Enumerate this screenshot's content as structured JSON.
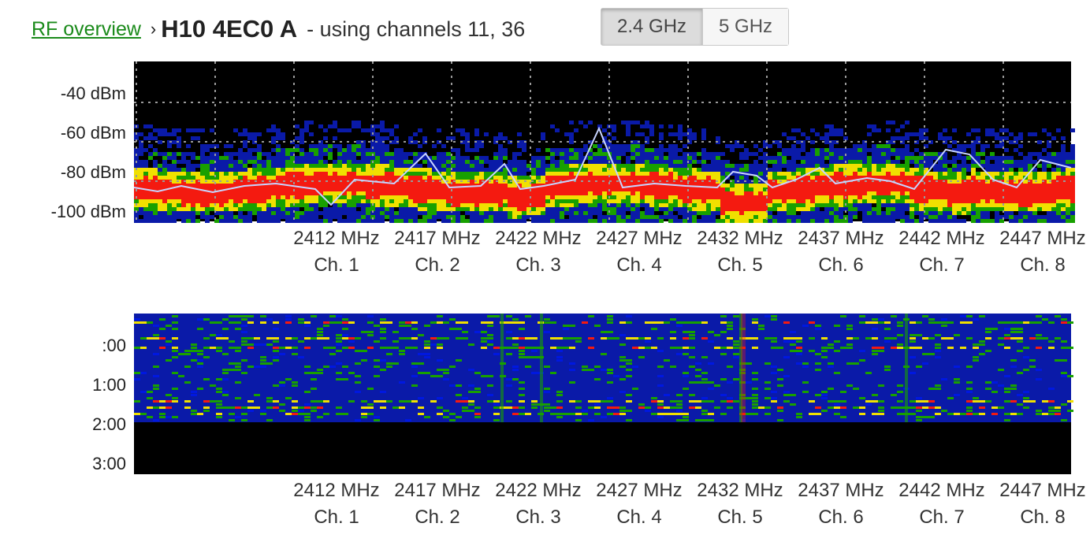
{
  "header": {
    "breadcrumb_link": "RF overview",
    "separator": "›",
    "ap_name": "H10 4EC0 A",
    "subtitle": "- using channels 11, 36"
  },
  "band_toggle": {
    "options": [
      "2.4 GHz",
      "5 GHz"
    ],
    "selected": "2.4 GHz"
  },
  "spectrum": {
    "y_ticks": [
      "-40 dBm",
      "-60 dBm",
      "-80 dBm",
      "-100 dBm"
    ],
    "x_freq_labels": [
      "2412 MHz",
      "2417 MHz",
      "2422 MHz",
      "2427 MHz",
      "2432 MHz",
      "2437 MHz",
      "2442 MHz",
      "2447 MHz"
    ],
    "x_channel_labels": [
      "Ch. 1",
      "Ch. 2",
      "Ch. 3",
      "Ch. 4",
      "Ch. 5",
      "Ch. 6",
      "Ch. 7",
      "Ch. 8"
    ],
    "colors": {
      "background": "#000000",
      "low": "#0a1aa8",
      "mid": "#18a000",
      "high": "#f0e000",
      "peak": "#f41a10",
      "trace": "#c8d4ff"
    }
  },
  "waterfall": {
    "y_ticks": [
      ":00",
      "1:00",
      "2:00",
      "3:00"
    ],
    "x_freq_labels": [
      "2412 MHz",
      "2417 MHz",
      "2422 MHz",
      "2427 MHz",
      "2432 MHz",
      "2437 MHz",
      "2442 MHz",
      "2447 MHz"
    ],
    "x_channel_labels": [
      "Ch. 1",
      "Ch. 2",
      "Ch. 3",
      "Ch. 4",
      "Ch. 5",
      "Ch. 6",
      "Ch. 7",
      "Ch. 8"
    ]
  }
}
